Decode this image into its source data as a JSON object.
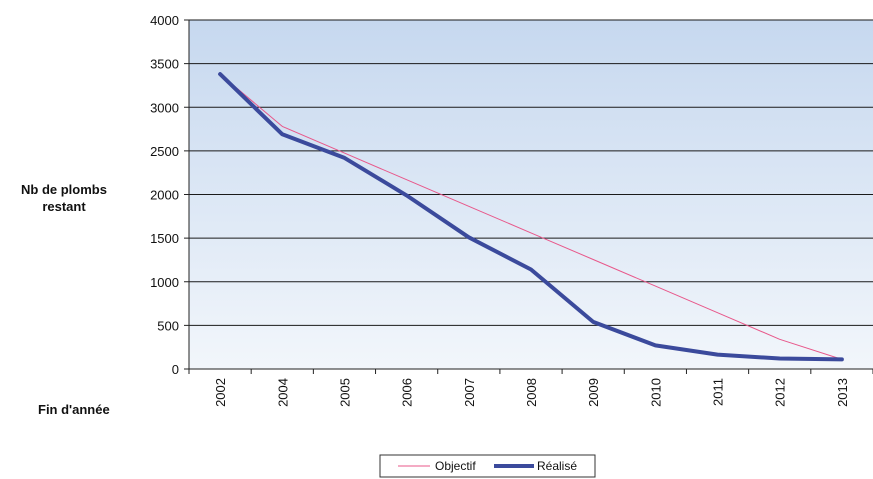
{
  "chart_data": {
    "type": "line",
    "categories": [
      "2002",
      "2004",
      "2005",
      "2006",
      "2007",
      "2008",
      "2009",
      "2010",
      "2011",
      "2012",
      "2013"
    ],
    "series": [
      {
        "name": "Objectif",
        "color": "#e8578a",
        "values": [
          3380,
          2780,
          2475,
          2170,
          1865,
          1560,
          1255,
          950,
          645,
          340,
          110
        ]
      },
      {
        "name": "Réalisé",
        "color": "#3b4a9c",
        "values": [
          3380,
          2690,
          2420,
          1990,
          1510,
          1140,
          540,
          270,
          165,
          120,
          110
        ]
      }
    ],
    "title": "",
    "ylabel": "Nb de plombs restant",
    "ylabel_lines": [
      "Nb de plombs",
      "restant"
    ],
    "xlabel": "Fin d'année",
    "ylim": [
      0,
      4000
    ],
    "yticks": [
      0,
      500,
      1000,
      1500,
      2000,
      2500,
      3000,
      3500,
      4000
    ],
    "grid": true,
    "legend_position": "bottom-center",
    "background_gradient": [
      "#c6d8ef",
      "#f2f6fb"
    ]
  }
}
